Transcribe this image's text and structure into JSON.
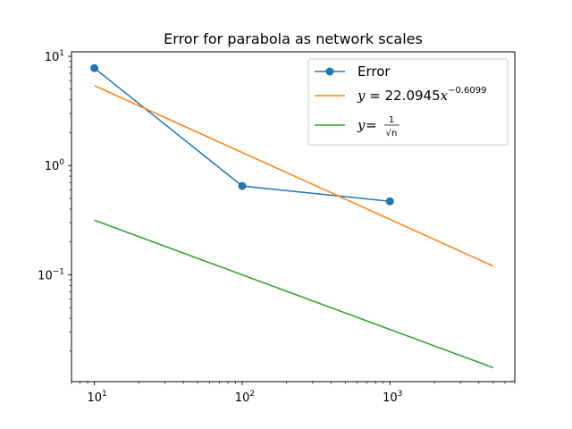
{
  "chart_data": {
    "type": "line",
    "title": "Error for parabola as network scales",
    "xlabel": "",
    "ylabel": "",
    "xscale": "log",
    "yscale": "log",
    "xlim": [
      7.0,
      7000
    ],
    "ylim": [
      0.0105,
      11.0
    ],
    "xticks": [
      {
        "value": 10,
        "label_base": "10",
        "label_exp": "1"
      },
      {
        "value": 100,
        "label_base": "10",
        "label_exp": "2"
      },
      {
        "value": 1000,
        "label_base": "10",
        "label_exp": "3"
      }
    ],
    "yticks": [
      {
        "value": 0.1,
        "label_base": "10",
        "label_exp": "−1"
      },
      {
        "value": 1,
        "label_base": "10",
        "label_exp": "0"
      },
      {
        "value": 10,
        "label_base": "10",
        "label_exp": "1"
      }
    ],
    "grid": false,
    "legend_position": "upper-right",
    "series": [
      {
        "name": "Error",
        "color": "#1f77b4",
        "marker": "circle",
        "x": [
          10,
          100,
          1000
        ],
        "y": [
          7.8,
          0.65,
          0.47
        ]
      },
      {
        "name": "y = 22.0945x^−0.6099",
        "color": "#ff7f0e",
        "marker": "none",
        "x": [
          10,
          5000
        ],
        "y": [
          5.4,
          0.12
        ]
      },
      {
        "name": "y = 1/√n",
        "color": "#2ca02c",
        "marker": "none",
        "x": [
          10,
          5000
        ],
        "y": [
          0.316,
          0.0141
        ]
      }
    ],
    "legend": [
      {
        "label": "Error"
      },
      {
        "prefix": "y",
        "eq": " = 22.0945",
        "var": "x",
        "exp": "−0.6099"
      },
      {
        "prefix": "y",
        "eq": " = ",
        "num": "1",
        "den": "√n"
      }
    ]
  }
}
